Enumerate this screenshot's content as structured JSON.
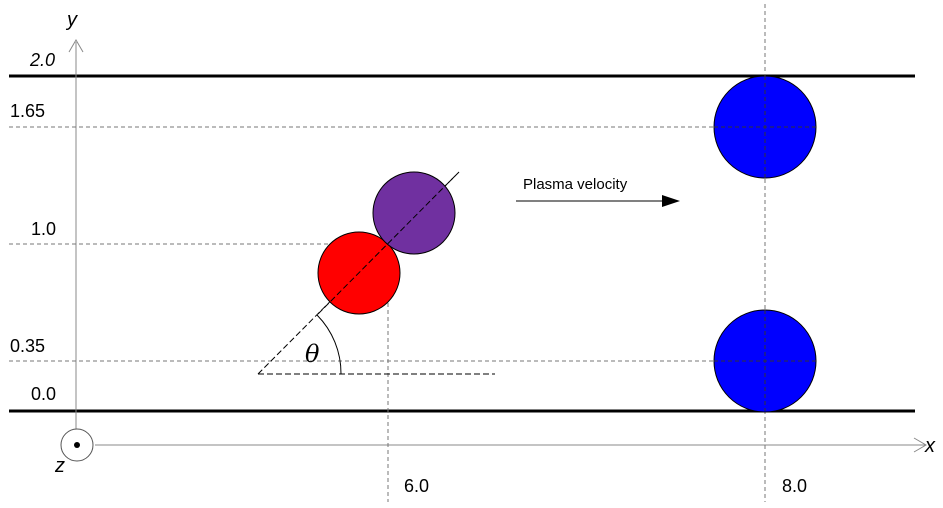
{
  "axes": {
    "x_name": "x",
    "y_name": "y",
    "z_name": "z"
  },
  "y_ticks": {
    "top_wall": "2.0",
    "upper_particle": "1.65",
    "tilted_center": "1.0",
    "lower_particle": "0.35",
    "bottom_wall": "0.0"
  },
  "x_ticks": {
    "tilted": "6.0",
    "pair": "8.0"
  },
  "angle_label": "θ",
  "velocity_label": "Plasma velocity",
  "colors": {
    "wall": "#000000",
    "guide": "#555555",
    "red_particle": "#ff0000",
    "purple_particle": "#7030a0",
    "blue_particle": "#0000ff",
    "particle_stroke": "#000000"
  }
}
